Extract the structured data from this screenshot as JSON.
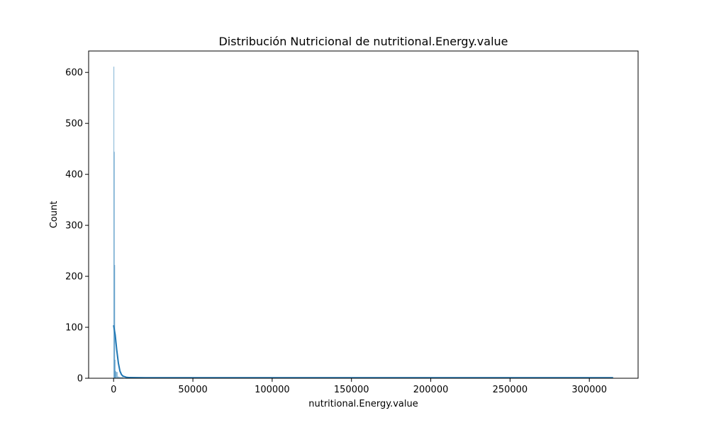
{
  "chart_data": {
    "type": "bar",
    "title": "Distribución Nutricional de nutritional.Energy.value",
    "xlabel": "nutritional.Energy.value",
    "ylabel": "Count",
    "xlim": [
      -15750,
      330750
    ],
    "ylim": [
      0,
      642
    ],
    "x_ticks": [
      {
        "value": 0,
        "label": "0"
      },
      {
        "value": 50000,
        "label": "50000"
      },
      {
        "value": 100000,
        "label": "100000"
      },
      {
        "value": 150000,
        "label": "150000"
      },
      {
        "value": 200000,
        "label": "200000"
      },
      {
        "value": 250000,
        "label": "250000"
      },
      {
        "value": 300000,
        "label": "300000"
      }
    ],
    "y_ticks": [
      {
        "value": 0,
        "label": "0"
      },
      {
        "value": 100,
        "label": "100"
      },
      {
        "value": 200,
        "label": "200"
      },
      {
        "value": 300,
        "label": "300"
      },
      {
        "value": 400,
        "label": "400"
      },
      {
        "value": 500,
        "label": "500"
      },
      {
        "value": 600,
        "label": "600"
      }
    ],
    "histogram": {
      "bins": [
        {
          "x0": 0,
          "x1": 250,
          "count": 611
        },
        {
          "x0": 250,
          "x1": 500,
          "count": 444
        },
        {
          "x0": 500,
          "x1": 750,
          "count": 222
        },
        {
          "x0": 750,
          "x1": 1000,
          "count": 36
        },
        {
          "x0": 1000,
          "x1": 1500,
          "count": 14
        },
        {
          "x0": 1500,
          "x1": 2500,
          "count": 12
        },
        {
          "x0": 2500,
          "x1": 3500,
          "count": 3
        },
        {
          "x0": 3500,
          "x1": 6000,
          "count": 2
        }
      ]
    },
    "kde": {
      "x": [
        0,
        1000,
        2000,
        3000,
        4000,
        5000,
        6000,
        8000,
        10000,
        20000,
        50000,
        100000,
        150000,
        200000,
        250000,
        300000,
        315000
      ],
      "y": [
        104,
        85,
        55,
        30,
        14,
        7,
        4,
        2,
        1.3,
        1,
        1,
        1,
        1,
        1,
        1,
        1,
        1
      ]
    },
    "grid": false,
    "legend": "none",
    "colors": {
      "bar": "#1f77b4",
      "kde": "#1f77b4"
    }
  }
}
